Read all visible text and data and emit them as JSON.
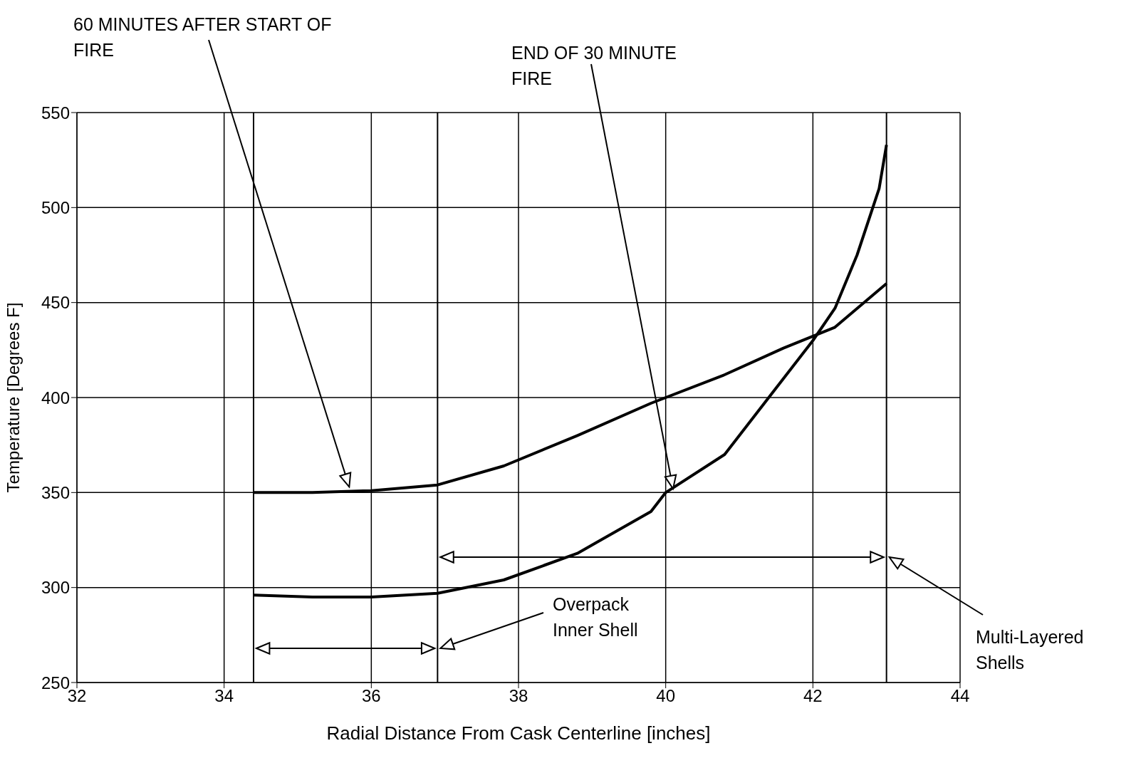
{
  "chart_data": {
    "type": "line",
    "xlabel": "Radial Distance From Cask Centerline [inches]",
    "ylabel": "Temperature [Degrees F]",
    "xlim": [
      32,
      44
    ],
    "xticks": [
      32,
      34,
      36,
      38,
      40,
      42,
      44
    ],
    "ylim": [
      250,
      550
    ],
    "yticks": [
      250,
      300,
      350,
      400,
      450,
      500,
      550
    ],
    "grid": true,
    "marker": "none",
    "line_style": "solid",
    "series": [
      {
        "color": "#000000",
        "x": [
          34.4,
          35.2,
          36,
          36.9,
          37.8,
          38.8,
          39.8,
          40.8,
          41.6,
          42.3,
          43.0
        ],
        "values": [
          350,
          350,
          351,
          354,
          364,
          380,
          397,
          412,
          426,
          437,
          460
        ]
      },
      {
        "color": "#000000",
        "x": [
          34.4,
          35.2,
          36,
          36.9,
          37.8,
          38.8,
          39.8,
          40,
          40.8,
          41.4,
          42,
          42.3,
          42.6,
          42.9,
          43.0
        ],
        "values": [
          296,
          295,
          295,
          297,
          304,
          318,
          340,
          350,
          370,
          400,
          430,
          447,
          475,
          510,
          533
        ]
      }
    ],
    "ref_lines": [
      {
        "axis": "x",
        "value": 34.4,
        "color": "#000000"
      },
      {
        "axis": "x",
        "value": 36.9,
        "color": "#000000"
      },
      {
        "axis": "x",
        "value": 43.0,
        "color": "#000000"
      }
    ],
    "annotations": [
      {
        "text": "60 MINUTES AFTER START OF FIRE",
        "x": 35.7,
        "y": 353
      },
      {
        "text": "END OF 30 MINUTE FIRE",
        "x": 40.1,
        "y": 352
      },
      {
        "text": "Overpack Inner Shell",
        "x": 36.9,
        "y": 268
      },
      {
        "text": "Multi-Layered Shells",
        "x": 43.0,
        "y": 316
      }
    ]
  }
}
